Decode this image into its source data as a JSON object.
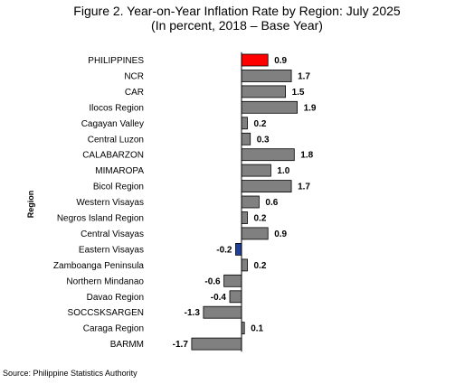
{
  "chart_data": {
    "type": "bar",
    "orientation": "horizontal",
    "title": "Figure 2. Year-on-Year Inflation Rate by Region: July 2025",
    "subtitle": "(In percent, 2018 – Base Year)",
    "ylabel": "Region",
    "xlabel": "",
    "xlim": [
      -2.0,
      2.1
    ],
    "grid": false,
    "legend": "none",
    "categories": [
      "PHILIPPINES",
      "NCR",
      "CAR",
      "Ilocos Region",
      "Cagayan Valley",
      "Central Luzon",
      "CALABARZON",
      "MIMAROPA",
      "Bicol Region",
      "Western Visayas",
      "Negros Island Region",
      "Central Visayas",
      "Eastern Visayas",
      "Zamboanga Peninsula",
      "Northern Mindanao",
      "Davao Region",
      "SOCCSKSARGEN",
      "Caraga Region",
      "BARMM"
    ],
    "values": [
      0.9,
      1.7,
      1.5,
      1.9,
      0.2,
      0.3,
      1.8,
      1.0,
      1.7,
      0.6,
      0.2,
      0.9,
      -0.2,
      0.2,
      -0.6,
      -0.4,
      -1.3,
      0.1,
      -1.7
    ],
    "value_labels": [
      "0.9",
      "1.7",
      "1.5",
      "1.9",
      "0.2",
      "0.3",
      "1.8",
      "1.0",
      "1.7",
      "0.6",
      "0.2",
      "0.9",
      "-0.2",
      "0.2",
      "-0.6",
      "-0.4",
      "-1.3",
      "0.1",
      "-1.7"
    ],
    "colors": {
      "default": "#808080",
      "highlight": "#ff0000",
      "highest_decline": "#1f3f9a",
      "border": "#000000"
    },
    "highlight_index": 0,
    "blue_index": 12
  },
  "source": "Source: Philippine Statistics Authority"
}
